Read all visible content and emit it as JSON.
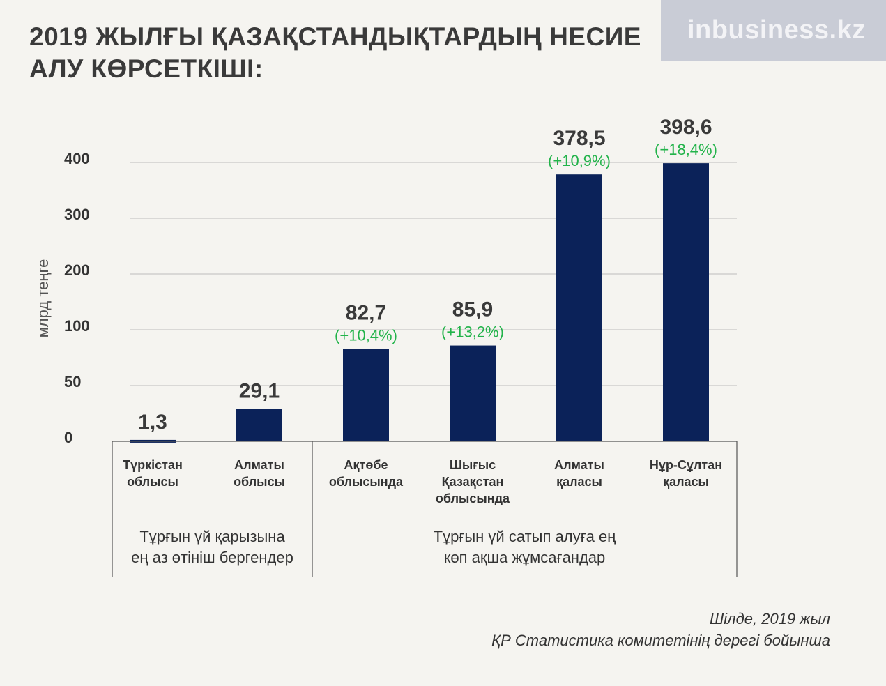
{
  "title": "2019 ЖЫЛҒЫ ҚАЗАҚСТАНДЫҚТАРДЫҢ НЕСИЕ АЛУ КӨРСЕТКІШІ:",
  "logo": "inbusiness.kz",
  "footer": {
    "date": "Шілде, 2019 жыл",
    "source": "ҚР Статистика комитетінің дерегі бойынша"
  },
  "groups": [
    "Тұрғын үй қарызына\nең аз өтініш бергендер",
    "Тұрғын үй сатып алуға ең\nкөп ақша жұмсағандар"
  ],
  "chart_data": {
    "type": "bar",
    "categories": [
      "Түркістан\nоблысы",
      "Алматы\nоблысы",
      "Ақтөбе\nоблысында",
      "Шығыс\nҚазақстан\nоблысында",
      "Алматы\nқаласы",
      "Нұр-Сұлтан\nқаласы"
    ],
    "values": [
      1.3,
      29.1,
      82.7,
      85.9,
      378.5,
      398.6
    ],
    "value_labels": [
      "1,3",
      "29,1",
      "82,7",
      "85,9",
      "378,5",
      "398,6"
    ],
    "change_labels": [
      "",
      "",
      "(+10,4%)",
      "(+13,2%)",
      "(+10,9%)",
      "(+18,4%)"
    ],
    "ylabel": "млрд теңге",
    "yticks": [
      0,
      50,
      100,
      200,
      300,
      400
    ],
    "ytick_labels": [
      "0",
      "50",
      "100",
      "200",
      "300",
      "400"
    ],
    "grid": true,
    "colors": {
      "bar": "#0b2259",
      "change": "#22b34a",
      "grid": "#bdbdbd"
    }
  }
}
